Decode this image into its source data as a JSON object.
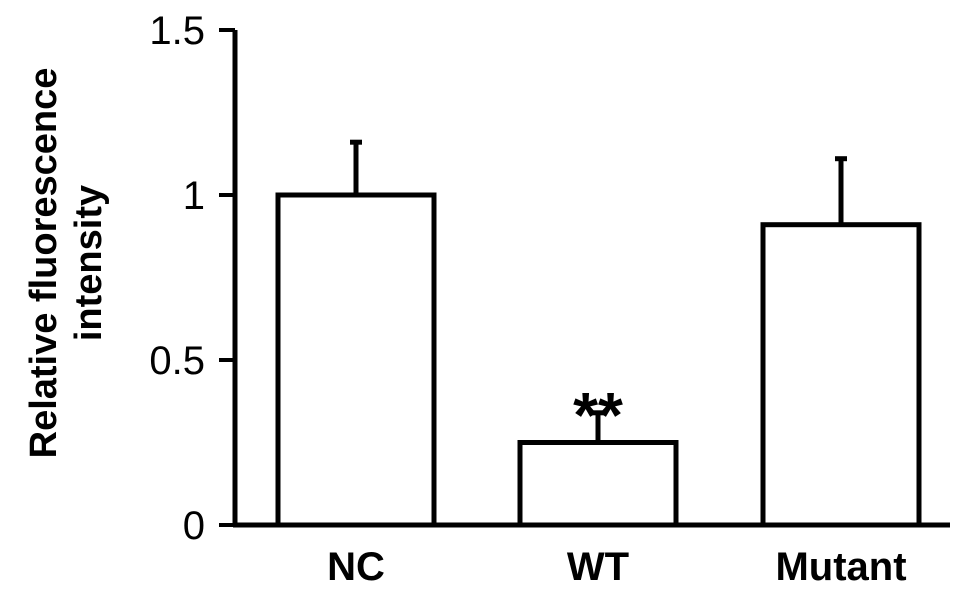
{
  "chart_data": {
    "type": "bar",
    "categories": [
      "NC",
      "WT",
      "Mutant"
    ],
    "values": [
      1.0,
      0.25,
      0.91
    ],
    "errors": [
      0.16,
      0.09,
      0.2
    ],
    "annotations": [
      "",
      "**",
      ""
    ],
    "ylabel_lines": [
      "Relative fluorescence",
      "intensity"
    ],
    "xlabel": "",
    "ylim": [
      0,
      1.5
    ],
    "yticks": [
      0,
      0.5,
      1,
      1.5
    ],
    "ytick_labels": [
      "0",
      "0.5",
      "1",
      "1.5"
    ],
    "grid": false,
    "bar_fill": "#ffffff",
    "bar_stroke": "#000000"
  }
}
